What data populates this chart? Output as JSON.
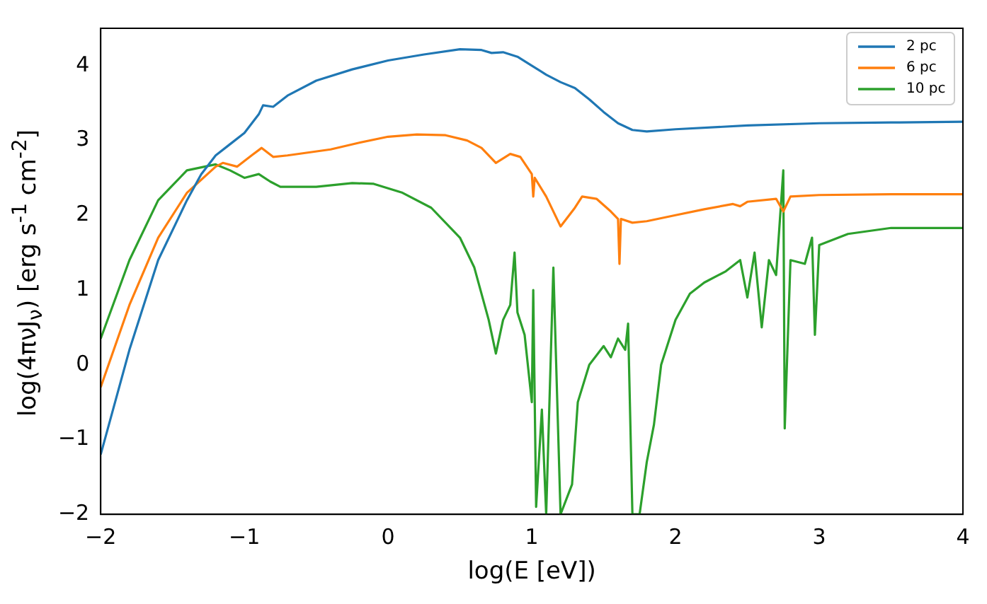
{
  "chart_data": {
    "type": "line",
    "xlabel": "log(E [eV])",
    "ylabel": "log(4πνJ$_{ν}$) [erg s$^{-1}$ cm$^{-2}$]",
    "xlim": [
      -2,
      4
    ],
    "ylim": [
      -2,
      4.5
    ],
    "xticks": [
      -2,
      -1,
      0,
      1,
      2,
      3,
      4
    ],
    "yticks": [
      -2,
      -1,
      0,
      1,
      2,
      3,
      4
    ],
    "grid": false,
    "legend": "top right",
    "marker": "none",
    "line_style": "solid",
    "series": [
      {
        "name": "2 pc",
        "color": "#1f77b4",
        "x": [
          -2,
          -1.8,
          -1.6,
          -1.4,
          -1.3,
          -1.2,
          -1.1,
          -1.0,
          -0.9,
          -0.87,
          -0.8,
          -0.7,
          -0.5,
          -0.25,
          0,
          0.25,
          0.5,
          0.65,
          0.72,
          0.8,
          0.9,
          1.0,
          1.1,
          1.2,
          1.3,
          1.4,
          1.5,
          1.6,
          1.7,
          1.8,
          2.0,
          2.5,
          3.0,
          3.5,
          4.0
        ],
        "values": [
          -1.2,
          0.2,
          1.4,
          2.2,
          2.55,
          2.8,
          2.95,
          3.1,
          3.35,
          3.47,
          3.45,
          3.6,
          3.8,
          3.95,
          4.07,
          4.15,
          4.22,
          4.21,
          4.17,
          4.18,
          4.12,
          4.0,
          3.88,
          3.78,
          3.7,
          3.55,
          3.38,
          3.23,
          3.14,
          3.12,
          3.15,
          3.2,
          3.23,
          3.24,
          3.25
        ]
      },
      {
        "name": "6 pc",
        "color": "#ff7f0e",
        "x": [
          -2,
          -1.8,
          -1.6,
          -1.4,
          -1.2,
          -1.15,
          -1.05,
          -0.95,
          -0.88,
          -0.8,
          -0.7,
          -0.4,
          -0.2,
          0,
          0.2,
          0.4,
          0.55,
          0.65,
          0.75,
          0.85,
          0.92,
          1.0,
          1.01,
          1.02,
          1.1,
          1.2,
          1.3,
          1.35,
          1.45,
          1.55,
          1.6,
          1.61,
          1.62,
          1.7,
          1.8,
          2.0,
          2.2,
          2.4,
          2.45,
          2.5,
          2.7,
          2.75,
          2.8,
          3.0,
          3.5,
          4.0
        ],
        "values": [
          -0.3,
          0.8,
          1.7,
          2.3,
          2.65,
          2.7,
          2.65,
          2.8,
          2.9,
          2.78,
          2.8,
          2.88,
          2.97,
          3.05,
          3.08,
          3.07,
          3.0,
          2.9,
          2.7,
          2.82,
          2.78,
          2.55,
          2.25,
          2.5,
          2.25,
          1.85,
          2.1,
          2.25,
          2.22,
          2.05,
          1.95,
          1.35,
          1.95,
          1.9,
          1.92,
          2.0,
          2.08,
          2.15,
          2.12,
          2.18,
          2.22,
          2.05,
          2.25,
          2.27,
          2.28,
          2.28
        ]
      },
      {
        "name": "10 pc",
        "color": "#2ca02c",
        "x": [
          -2,
          -1.8,
          -1.6,
          -1.4,
          -1.2,
          -1.1,
          -1.0,
          -0.9,
          -0.82,
          -0.75,
          -0.5,
          -0.25,
          -0.1,
          0.1,
          0.3,
          0.5,
          0.6,
          0.7,
          0.75,
          0.8,
          0.85,
          0.88,
          0.9,
          0.95,
          1.0,
          1.01,
          1.03,
          1.07,
          1.1,
          1.15,
          1.2,
          1.28,
          1.32,
          1.4,
          1.5,
          1.55,
          1.6,
          1.65,
          1.67,
          1.7,
          1.75,
          1.8,
          1.85,
          1.9,
          2.0,
          2.1,
          2.2,
          2.35,
          2.45,
          2.5,
          2.55,
          2.6,
          2.65,
          2.7,
          2.75,
          2.76,
          2.8,
          2.9,
          2.95,
          2.97,
          3.0,
          3.2,
          3.5,
          4.0
        ],
        "values": [
          0.35,
          1.4,
          2.2,
          2.6,
          2.68,
          2.6,
          2.5,
          2.55,
          2.45,
          2.38,
          2.38,
          2.43,
          2.42,
          2.3,
          2.1,
          1.7,
          1.3,
          0.6,
          0.15,
          0.6,
          0.8,
          1.5,
          0.7,
          0.4,
          -0.5,
          1.0,
          -1.9,
          -0.6,
          -2,
          1.3,
          -2,
          -1.6,
          -0.5,
          0.0,
          0.25,
          0.1,
          0.35,
          0.2,
          0.55,
          -2,
          -2,
          -1.3,
          -0.8,
          0.0,
          0.6,
          0.95,
          1.1,
          1.25,
          1.4,
          0.9,
          1.5,
          0.5,
          1.4,
          1.2,
          2.6,
          -0.85,
          1.4,
          1.35,
          1.7,
          0.4,
          1.6,
          1.75,
          1.83,
          1.83
        ]
      }
    ]
  }
}
